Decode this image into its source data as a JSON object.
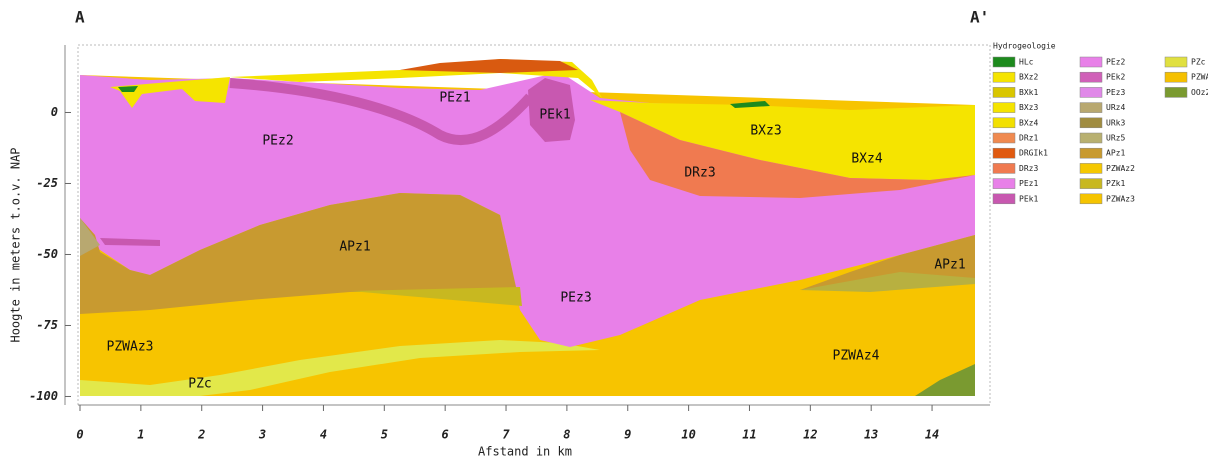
{
  "chart_data": {
    "type": "cross-section",
    "section_labels": [
      "A",
      "A'"
    ],
    "xlabel": "Afstand in km",
    "ylabel": "Hoogte in meters t.o.v. NAP",
    "xlim": [
      0,
      14.75
    ],
    "ylim": [
      -103,
      22
    ],
    "xticks": [
      0,
      1,
      2,
      3,
      4,
      5,
      6,
      7,
      8,
      9,
      10,
      11,
      12,
      13,
      14
    ],
    "yticks": [
      0,
      -25,
      -50,
      -75,
      -100
    ],
    "legend": {
      "title": "Hydrogeologie",
      "position": "right",
      "entries": [
        {
          "name": "HLc",
          "color": "#1d8a1d"
        },
        {
          "name": "BXz2",
          "color": "#f5e400"
        },
        {
          "name": "BXk1",
          "color": "#d9c600"
        },
        {
          "name": "BXz3",
          "color": "#f5e400"
        },
        {
          "name": "BXz4",
          "color": "#f2e000"
        },
        {
          "name": "DRz1",
          "color": "#f08a50"
        },
        {
          "name": "DRGIk1",
          "color": "#e05a10"
        },
        {
          "name": "DRz3",
          "color": "#f07a50"
        },
        {
          "name": "PEz1",
          "color": "#e880e8"
        },
        {
          "name": "PEk1",
          "color": "#c858b0"
        },
        {
          "name": "PEz2",
          "color": "#e880e8"
        },
        {
          "name": "PEk2",
          "color": "#d060b8"
        },
        {
          "name": "PEz3",
          "color": "#e088e8"
        },
        {
          "name": "URz4",
          "color": "#b8a870"
        },
        {
          "name": "URk3",
          "color": "#a08c40"
        },
        {
          "name": "URz5",
          "color": "#b8b070"
        },
        {
          "name": "APz1",
          "color": "#c89a30"
        },
        {
          "name": "PZWAz2",
          "color": "#f5c800"
        },
        {
          "name": "PZk1",
          "color": "#c8b820"
        },
        {
          "name": "PZWAz3",
          "color": "#f5c400"
        },
        {
          "name": "PZc",
          "color": "#e0e040"
        },
        {
          "name": "PZWAz4",
          "color": "#f5c000"
        },
        {
          "name": "OOz2",
          "color": "#7a9a30"
        }
      ]
    },
    "annotations": [
      "PEz1",
      "PEk1",
      "PEz2",
      "BXz3",
      "BXz4",
      "DRz3",
      "APz1",
      "APz1",
      "PEz3",
      "PZWAz3",
      "PZWAz4",
      "PZc"
    ]
  }
}
